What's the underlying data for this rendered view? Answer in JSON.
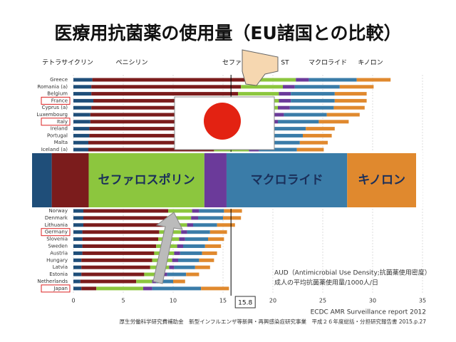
{
  "chart_data": {
    "type": "bar",
    "orientation": "horizontal",
    "stacked": true,
    "title": "医療用抗菌薬の使用量（EU諸国との比較）",
    "categories": [
      "Greece",
      "Romania (a)",
      "Belgium",
      "France",
      "Cyprus (a)",
      "Luxembourg",
      "Italy",
      "Ireland",
      "Portugal",
      "Malta",
      "Iceland (a)",
      "Norway",
      "Denmark",
      "Lithuania",
      "Germany",
      "Slovenia",
      "Sweden",
      "Austria",
      "Hungary",
      "Latvia",
      "Estonia",
      "Netherlands",
      "Japan"
    ],
    "boxed": [
      3,
      6,
      14,
      22
    ],
    "series": [
      {
        "name": "テトラサイクリン",
        "color": "#1f4e79",
        "values": [
          1.9,
          1.8,
          1.8,
          2.0,
          1.8,
          1.7,
          1.7,
          1.6,
          1.6,
          1.5,
          1.5,
          1.0,
          1.0,
          1.0,
          0.9,
          0.9,
          0.9,
          0.9,
          0.8,
          0.8,
          0.8,
          0.7,
          0.8
        ]
      },
      {
        "name": "ペニシリン",
        "color": "#7b1c1c",
        "values": [
          15.9,
          15.0,
          14.7,
          14.8,
          14.6,
          14.3,
          13.8,
          13.1,
          12.9,
          12.8,
          12.6,
          8.5,
          8.4,
          8.1,
          7.7,
          7.6,
          7.4,
          7.2,
          7.1,
          6.9,
          6.3,
          5.6,
          1.5
        ]
      },
      {
        "name": "セファロ",
        "color": "#8cc63e",
        "values": [
          4.5,
          4.2,
          4.1,
          3.8,
          4.1,
          4.0,
          3.9,
          3.7,
          3.6,
          3.6,
          3.5,
          2.4,
          2.4,
          2.3,
          2.2,
          2.1,
          2.1,
          2.0,
          2.0,
          1.9,
          1.8,
          1.6,
          4.7
        ]
      },
      {
        "name": "ST",
        "color": "#6b3a9a",
        "values": [
          1.3,
          1.2,
          1.2,
          1.2,
          1.2,
          1.1,
          1.1,
          1.0,
          1.0,
          1.0,
          1.0,
          0.7,
          0.7,
          0.6,
          0.6,
          0.6,
          0.6,
          0.6,
          0.6,
          0.5,
          0.5,
          0.4,
          0.9
        ]
      },
      {
        "name": "マクロライド",
        "color": "#3a7ca8",
        "values": [
          4.8,
          4.5,
          4.4,
          4.4,
          4.4,
          4.3,
          4.1,
          3.9,
          3.9,
          3.8,
          3.8,
          2.5,
          2.5,
          2.4,
          2.3,
          2.3,
          2.2,
          2.2,
          2.1,
          2.1,
          1.9,
          1.7,
          4.9
        ]
      },
      {
        "name": "キノロン",
        "color": "#e0892e",
        "values": [
          3.4,
          3.4,
          3.2,
          3.2,
          3.1,
          3.3,
          3.0,
          2.9,
          2.9,
          2.8,
          2.7,
          1.8,
          1.8,
          1.8,
          1.7,
          1.6,
          1.6,
          1.5,
          1.5,
          1.5,
          1.3,
          1.2,
          2.8
        ]
      }
    ],
    "xlim": [
      0,
      35
    ],
    "xticks": [
      0,
      5,
      10,
      15,
      20,
      25,
      30,
      35
    ],
    "highlight_labels": [
      "セファロスポリン",
      "マクロライド",
      "キノロン"
    ],
    "marker_value": 15.8,
    "note": [
      "AUD（Antimicrobial Use Density;抗菌薬使用密度）",
      "成人の平均抗菌薬使用量/1000人/日"
    ],
    "source": "ECDC AMR Surveillance report 2012",
    "footer": "厚生労働科学研究費補助金　新型インフルエンザ等新興・再興感染症研究事業　平成２６年度総括・分担研究報告書 2015.p.27"
  }
}
